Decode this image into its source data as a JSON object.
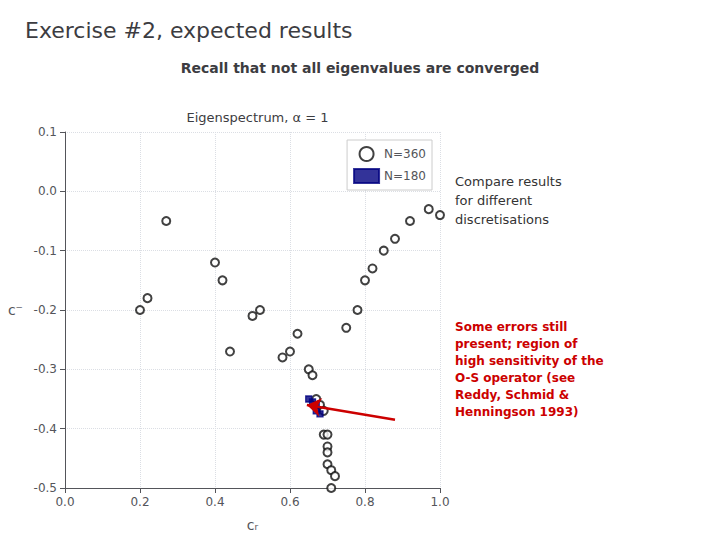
{
  "chart_data": {
    "type": "scatter",
    "title": "Exercise #2, expected results",
    "subtitle": "Recall that not all eigenvalues are converged",
    "plot_title": "Eigenspectrum, α = 1",
    "xlabel": "cᵣ",
    "ylabel": "c⁻",
    "xlim": [
      0,
      1
    ],
    "ylim": [
      -0.5,
      0.1
    ],
    "xticks": [
      {
        "value": 0,
        "label": "0.0"
      },
      0.2,
      0.4,
      0.6,
      0.8,
      {
        "value": 1.0,
        "label": "1.0"
      }
    ],
    "yticks": [
      -0.5,
      -0.4,
      -0.3,
      -0.2,
      -0.1,
      {
        "value": 0,
        "label": "0.0"
      },
      0.1
    ],
    "grid": true,
    "legend": "upper right",
    "series": [
      {
        "name": "N=360",
        "color": "#111111",
        "marker": "open_circle",
        "x": [
          0.22,
          0.27,
          0.2,
          0.4,
          0.42,
          0.44,
          0.5,
          0.52,
          0.58,
          0.6,
          0.62,
          0.65,
          0.66,
          0.67,
          0.68,
          0.69,
          0.69,
          0.7,
          0.7,
          0.7,
          0.7,
          0.71,
          0.71,
          0.72,
          0.75,
          0.78,
          0.8,
          0.82,
          0.85,
          0.88,
          0.92,
          0.97,
          1.0
        ],
        "values": [
          -0.18,
          -0.05,
          -0.2,
          -0.12,
          -0.15,
          -0.27,
          -0.21,
          -0.2,
          -0.28,
          -0.27,
          -0.24,
          -0.3,
          -0.31,
          -0.35,
          -0.36,
          -0.37,
          -0.41,
          -0.41,
          -0.43,
          -0.44,
          -0.46,
          -0.47,
          -0.5,
          -0.48,
          -0.23,
          -0.2,
          -0.15,
          -0.13,
          -0.1,
          -0.08,
          -0.05,
          -0.03,
          -0.04
        ]
      },
      {
        "name": "N=180",
        "color": "#000080",
        "marker": "square",
        "x": [
          0.65,
          0.66,
          0.67,
          0.67,
          0.68
        ],
        "values": [
          -0.35,
          -0.355,
          -0.36,
          -0.37,
          -0.375
        ]
      }
    ],
    "annotations": [
      {
        "text": "Compare results\nfor different\ndiscretisations"
      },
      {
        "text": "Some errors still\npresent; region of\nhigh sensitivity of the\nO-S operator (see\nReddy, Schmid &\nHenningson 1993)",
        "color": "#cc0000",
        "arrow": {
          "from": [
            0.88,
            -0.385
          ],
          "to": [
            0.645,
            -0.36
          ]
        }
      }
    ]
  }
}
